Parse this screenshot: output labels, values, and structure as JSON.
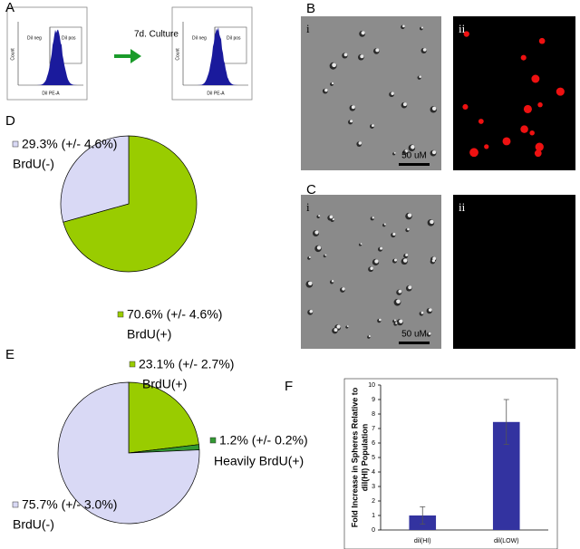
{
  "panel_labels": [
    "A",
    "B",
    "C",
    "D",
    "E",
    "F"
  ],
  "panel_a": {
    "arrow_label": "7d. Culture",
    "plots": [
      {
        "y_label": "Count",
        "x_label": "DiI PE-A",
        "gate_left": "DiI neg",
        "gate_right": "DiI pos"
      },
      {
        "y_label": "Count",
        "x_label": "DiI PE-A",
        "gate_left": "DiI neg",
        "gate_right": "DiI pos"
      }
    ]
  },
  "panel_b": {
    "image_labels": [
      "i",
      "ii"
    ],
    "scale_bar": "50 uM"
  },
  "panel_c": {
    "image_labels": [
      "i",
      "ii"
    ],
    "scale_bar": "50 uM"
  },
  "chart_data": [
    {
      "type": "pie",
      "categories": [
        "BrdU(+)",
        "BrdU(-)"
      ],
      "values": [
        70.6,
        29.3
      ],
      "value_labels": [
        "70.6% (+/- 4.6%)",
        "29.3% (+/- 4.6%)"
      ],
      "colors": [
        "#99cc00",
        "#d9d9f5"
      ]
    },
    {
      "type": "pie",
      "categories": [
        "BrdU(+)",
        "Heavily BrdU(+)",
        "BrdU(-)"
      ],
      "values": [
        23.1,
        1.2,
        75.7
      ],
      "value_labels": [
        "23.1% (+/- 2.7%)",
        "1.2% (+/- 0.2%)",
        "75.7% (+/- 3.0%)"
      ],
      "colors": [
        "#99cc00",
        "#339933",
        "#d9d9f5"
      ]
    },
    {
      "type": "bar",
      "ylabel": [
        "Fold Increase in Spheres Relative to",
        "dil(HI) Population"
      ],
      "categories": [
        "dil(HI)",
        "dil(LOW)"
      ],
      "values": [
        1,
        7.45
      ],
      "errors": [
        0.6,
        1.55
      ],
      "color": "#3333a0",
      "ylim": [
        0,
        10
      ],
      "yticks": [
        0,
        1,
        2,
        3,
        4,
        5,
        6,
        7,
        8,
        9,
        10
      ]
    }
  ]
}
